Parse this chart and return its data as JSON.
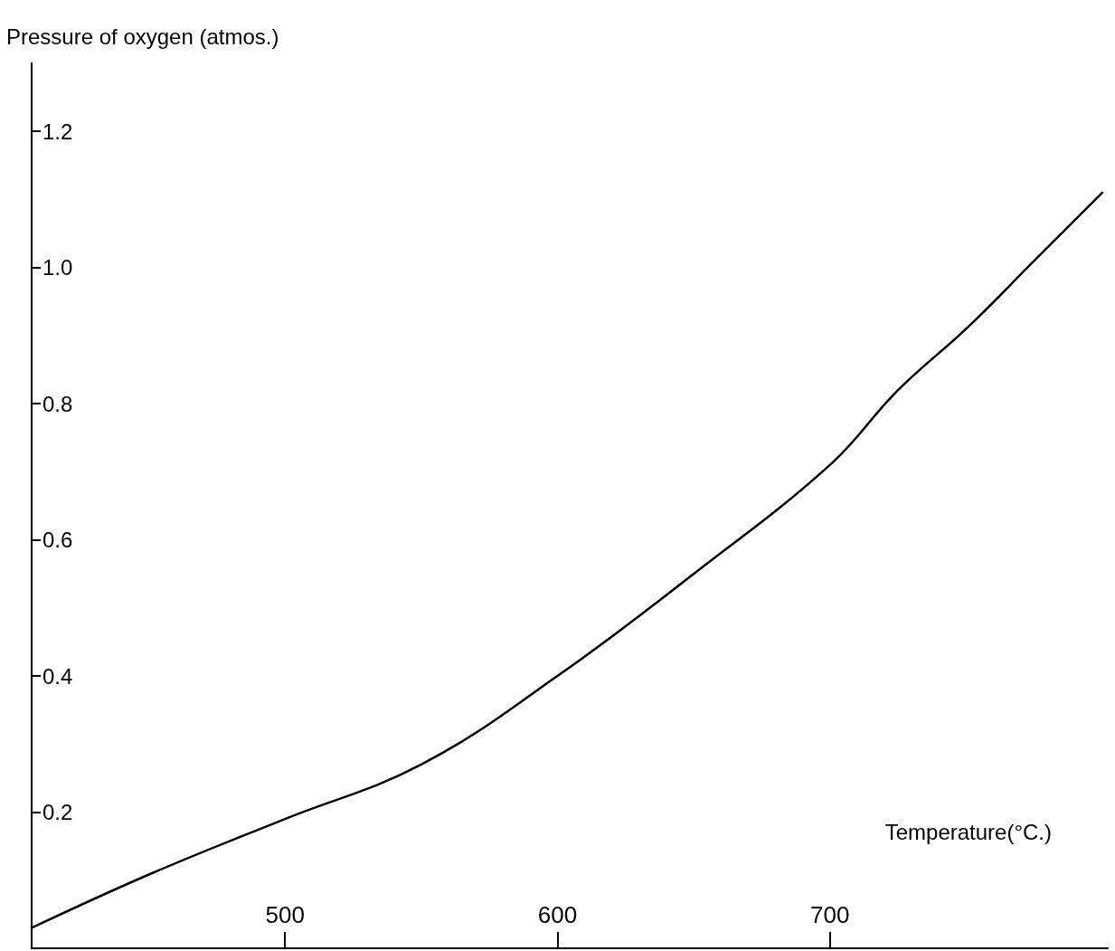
{
  "chart_data": {
    "type": "line",
    "xlabel": "Temperature(°C.)",
    "ylabel": "Pressure of oxygen (atmos.)",
    "x": [
      407,
      451,
      500,
      550,
      600,
      650,
      700,
      725,
      750,
      775,
      800
    ],
    "series": [
      {
        "color": "#000000",
        "values": [
          0.03,
          0.11,
          0.19,
          0.27,
          0.4,
          0.55,
          0.71,
          0.82,
          0.91,
          1.01,
          1.11
        ]
      }
    ],
    "xlim": [
      407,
      802
    ],
    "xticks": [
      500,
      600,
      700
    ],
    "ylim": [
      0,
      1.3
    ],
    "yticks": [
      0.2,
      0.4,
      0.6,
      0.8,
      {
        "value": 1,
        "label": "1.0"
      },
      1.2
    ],
    "grid": false,
    "marker": "none",
    "line_style": "solid"
  }
}
